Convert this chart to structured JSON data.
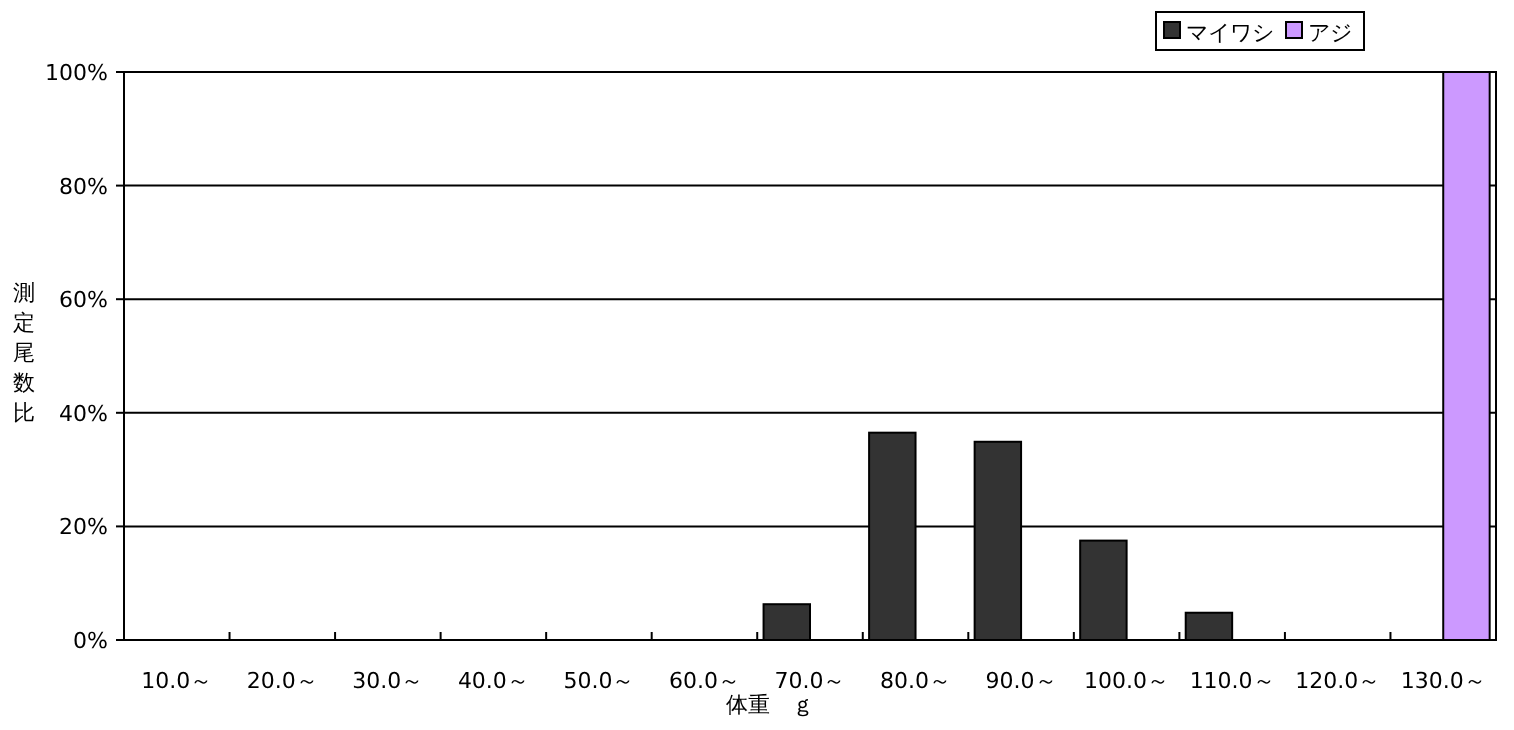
{
  "chart_data": {
    "type": "bar",
    "xlabel": "体重　ｇ",
    "ylabel": "測定尾数比",
    "categories": [
      "10.0～",
      "20.0～",
      "30.0～",
      "40.0～",
      "50.0～",
      "60.0～",
      "70.0～",
      "80.0～",
      "90.0～",
      "100.0～",
      "110.0～",
      "120.0～",
      "130.0～"
    ],
    "series": [
      {
        "name": "マイワシ",
        "color": "#333333",
        "values": [
          null,
          null,
          null,
          null,
          null,
          null,
          6.3,
          36.5,
          34.9,
          17.5,
          4.8,
          null,
          null
        ]
      },
      {
        "name": "アジ",
        "color": "#cc99ff",
        "values": [
          null,
          null,
          null,
          null,
          null,
          null,
          null,
          null,
          null,
          null,
          null,
          null,
          100
        ]
      }
    ],
    "ylim": [
      0,
      100
    ],
    "yticks": [
      {
        "value": 0,
        "label": "0%"
      },
      {
        "value": 20,
        "label": "20%"
      },
      {
        "value": 40,
        "label": "40%"
      },
      {
        "value": 60,
        "label": "60%"
      },
      {
        "value": 80,
        "label": "80%"
      },
      {
        "value": 100,
        "label": "100%"
      }
    ],
    "grid": "y",
    "legend": "top right"
  }
}
